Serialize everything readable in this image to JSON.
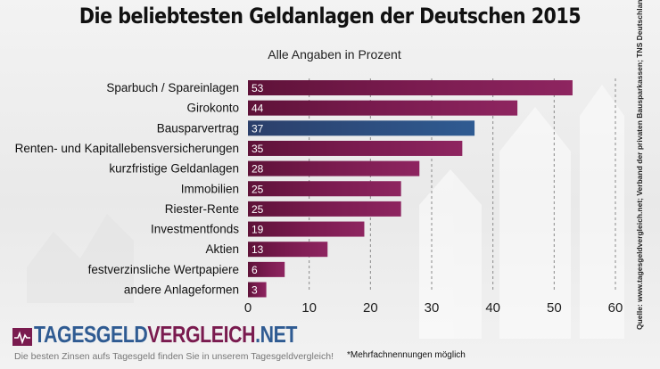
{
  "header": {
    "title": "Die beliebtesten Geldanlagen der Deutschen 2015",
    "subtitle": "Alle Angaben in Prozent"
  },
  "source_note": "Quelle: www.tagesgeldvergleich.net; Verband der privaten Bausparkassen; TNS Deutschland",
  "footnote": "*Mehrfachnennungen möglich",
  "brand": {
    "name_part1": "TAGESGELD",
    "name_part2": "VERGLEICH",
    "name_part3": ".NET",
    "tagline": "Die besten Zinsen aufs Tagesgeld finden Sie in unserem Tagesgeldvergleich!"
  },
  "colors": {
    "bar_primary": "#7a1b4f",
    "bar_highlight": "#2f4f7f",
    "brand_blue": "#2f5b92",
    "brand_purple": "#7a1b4f"
  },
  "chart_data": {
    "type": "bar",
    "orientation": "horizontal",
    "title": "Die beliebtesten Geldanlagen der Deutschen 2015",
    "subtitle": "Alle Angaben in Prozent",
    "categories": [
      "Sparbuch / Spareinlagen",
      "Girokonto",
      "Bausparvertrag",
      "Renten- und Kapitallebensversicherungen",
      "kurzfristige Geldanlagen",
      "Immobilien",
      "Riester-Rente",
      "Investmentfonds",
      "Aktien",
      "festverzinsliche Wertpapiere",
      "andere Anlageformen"
    ],
    "values": [
      53,
      44,
      37,
      35,
      28,
      25,
      25,
      19,
      13,
      6,
      3
    ],
    "highlight_index": 2,
    "xlim": [
      0,
      60
    ],
    "xticks": [
      0,
      10,
      20,
      30,
      40,
      50,
      60
    ],
    "xlabel": "",
    "ylabel": "",
    "grid": "dashed vertical"
  }
}
